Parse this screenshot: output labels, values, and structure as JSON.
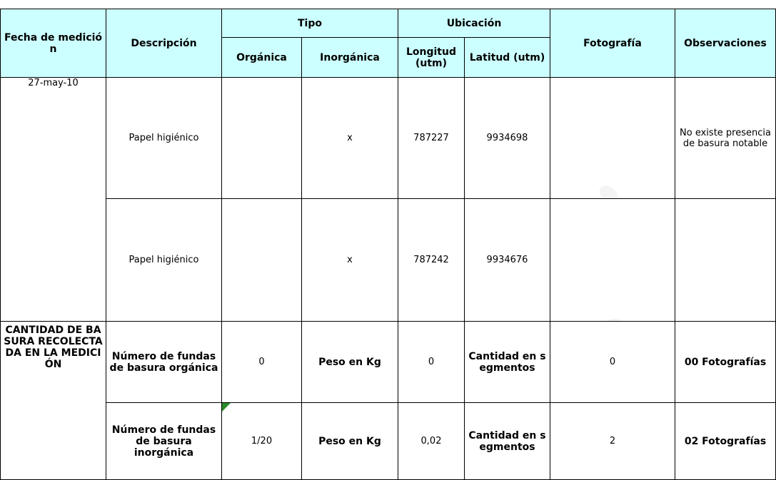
{
  "header": {
    "fecha": "Fecha de medición",
    "descripcion": "Descripción",
    "tipo": "Tipo",
    "organica": "Orgánica",
    "inorganica": "Inorgánica",
    "ubicacion": "Ubicación",
    "longitud": "Longitud (utm)",
    "latitud": "Latitud (utm)",
    "fotografia": "Fotografía",
    "observaciones": "Observaciones"
  },
  "fecha": "27-may-10",
  "observacion": "No existe presencia de basura notable",
  "rows": [
    {
      "descripcion": "Papel higiénico",
      "inorganica": "x",
      "longitud": "787227",
      "latitud": "9934698"
    },
    {
      "descripcion": "Papel higiénico",
      "inorganica": "x",
      "longitud": "787242",
      "latitud": "9934676"
    }
  ],
  "summary": {
    "label": "CANTIDAD DE BASURA RECOLECTADA EN LA MEDICIÓN",
    "rows": [
      {
        "label": "Número de fundas de basura orgánica",
        "count": "0",
        "peso_label": "Peso en Kg",
        "peso": "0",
        "segmentos_label": "Cantidad en segmentos",
        "segmentos": "0",
        "fotos": "00 Fotografías"
      },
      {
        "label": "Número de fundas de basura inorgánica",
        "count": "1/20",
        "peso_label": "Peso en Kg",
        "peso": "0,02",
        "segmentos_label": "Cantidad en segmentos",
        "segmentos": "2",
        "fotos": "02 Fotografías"
      }
    ]
  }
}
